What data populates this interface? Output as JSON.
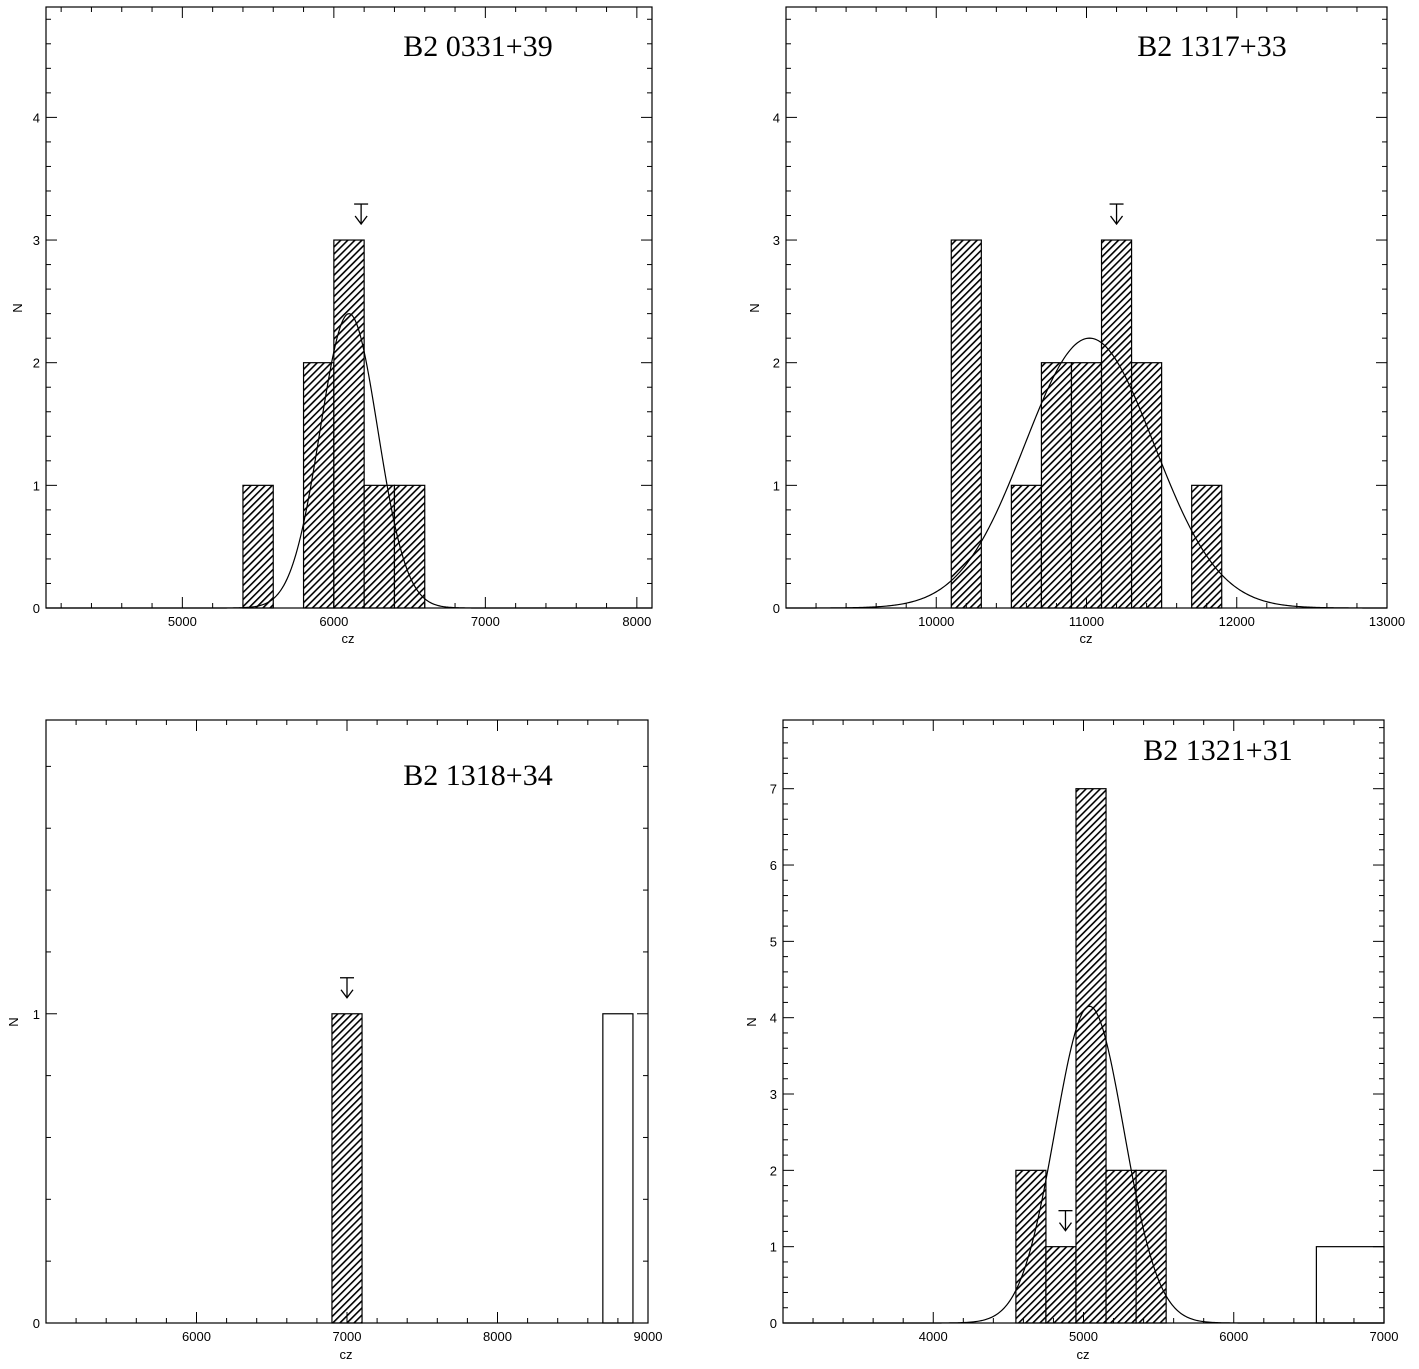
{
  "chart_data": [
    {
      "type": "bar",
      "title": "B2  0331+39",
      "xlabel": "cz",
      "ylabel": "N",
      "xlim": [
        4100,
        8100
      ],
      "ylim": [
        0,
        4.9
      ],
      "xticks": [
        5000,
        6000,
        7000,
        8000
      ],
      "yticks": [
        0,
        1,
        2,
        3,
        4
      ],
      "hatched_bins": [
        {
          "x0": 5400,
          "x1": 5600,
          "count": 1
        },
        {
          "x0": 5800,
          "x1": 6000,
          "count": 2
        },
        {
          "x0": 6000,
          "x1": 6200,
          "count": 3
        },
        {
          "x0": 6200,
          "x1": 6400,
          "count": 1
        },
        {
          "x0": 6400,
          "x1": 6600,
          "count": 1
        }
      ],
      "open_bins": [],
      "gaussian": {
        "mean": 6100,
        "sigma": 190,
        "peak": 2.4
      },
      "marker_x": 6180
    },
    {
      "type": "bar",
      "title": "B2  1317+33",
      "xlabel": "cz",
      "ylabel": "N",
      "xlim": [
        9000,
        13000
      ],
      "ylim": [
        0,
        4.9
      ],
      "xticks": [
        10000,
        11000,
        12000,
        13000
      ],
      "yticks": [
        0,
        1,
        2,
        3,
        4
      ],
      "hatched_bins": [
        {
          "x0": 10100,
          "x1": 10300,
          "count": 3
        },
        {
          "x0": 10500,
          "x1": 10700,
          "count": 1
        },
        {
          "x0": 10700,
          "x1": 10900,
          "count": 2
        },
        {
          "x0": 10900,
          "x1": 11100,
          "count": 2
        },
        {
          "x0": 11100,
          "x1": 11300,
          "count": 3
        },
        {
          "x0": 11300,
          "x1": 11500,
          "count": 2
        },
        {
          "x0": 11700,
          "x1": 11900,
          "count": 1
        }
      ],
      "open_bins": [],
      "gaussian": {
        "mean": 11020,
        "sigma": 430,
        "peak": 2.2
      },
      "marker_x": 11200
    },
    {
      "type": "bar",
      "title": "B2  1318+34",
      "xlabel": "cz",
      "ylabel": "N",
      "xlim": [
        5000,
        9000
      ],
      "ylim": [
        0,
        1.95
      ],
      "xticks": [
        6000,
        7000,
        8000,
        9000
      ],
      "yticks": [
        0,
        1
      ],
      "hatched_bins": [
        {
          "x0": 6900,
          "x1": 7100,
          "count": 1
        }
      ],
      "open_bins": [
        {
          "x0": 8700,
          "x1": 8900,
          "count": 1
        }
      ],
      "gaussian": null,
      "marker_x": 7000
    },
    {
      "type": "bar",
      "title": "B2  1321+31",
      "xlabel": "cz",
      "ylabel": "N",
      "xlim": [
        3000,
        7000
      ],
      "ylim": [
        0,
        7.9
      ],
      "xticks": [
        4000,
        5000,
        6000,
        7000
      ],
      "yticks": [
        0,
        1,
        2,
        3,
        4,
        5,
        6,
        7
      ],
      "hatched_bins": [
        {
          "x0": 4550,
          "x1": 4750,
          "count": 2
        },
        {
          "x0": 4750,
          "x1": 4950,
          "count": 1
        },
        {
          "x0": 4950,
          "x1": 5150,
          "count": 7
        },
        {
          "x0": 5150,
          "x1": 5350,
          "count": 2
        },
        {
          "x0": 5350,
          "x1": 5550,
          "count": 2
        }
      ],
      "open_bins": [
        {
          "x0": 6550,
          "x1": 7000,
          "count": 1
        }
      ],
      "gaussian": {
        "mean": 5040,
        "sigma": 230,
        "peak": 4.15
      },
      "marker_x": 4880
    }
  ]
}
